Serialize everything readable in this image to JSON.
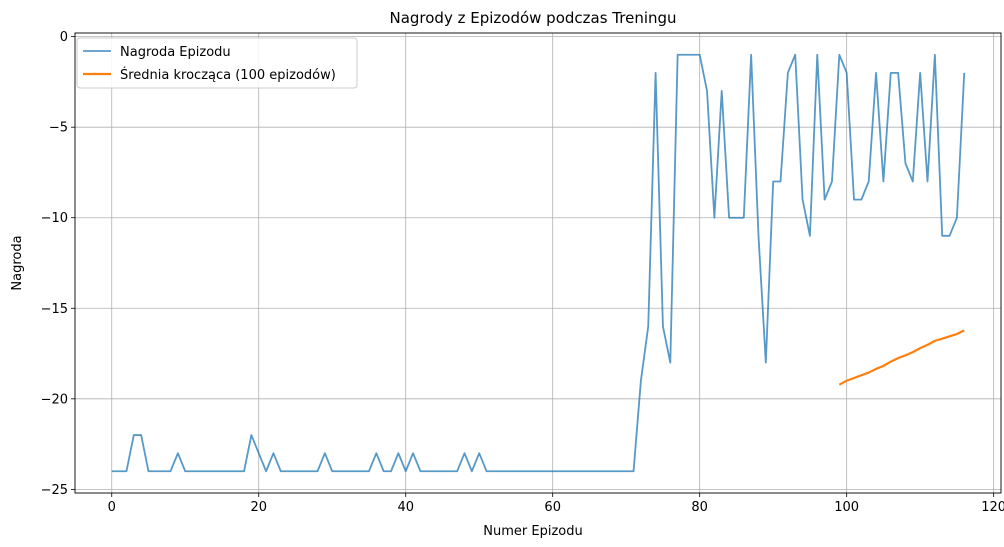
{
  "chart_data": {
    "type": "line",
    "title": "Nagrody z Epizodów podczas Treningu",
    "xlabel": "Numer Epizodu",
    "ylabel": "Nagroda",
    "xlim": [
      -5,
      121
    ],
    "ylim": [
      -25.2,
      0.2
    ],
    "xticks": [
      0,
      20,
      40,
      60,
      80,
      100,
      120
    ],
    "yticks": [
      0,
      -5,
      -10,
      -15,
      -20,
      -25
    ],
    "ytick_labels": [
      "0",
      "−5",
      "−10",
      "−15",
      "−20",
      "−25"
    ],
    "grid": true,
    "legend_position": "top-left",
    "series": [
      {
        "name": "Nagroda Epizodu",
        "color": "#1f77b4",
        "x": [
          0,
          1,
          2,
          3,
          4,
          5,
          6,
          7,
          8,
          9,
          10,
          11,
          12,
          13,
          14,
          15,
          16,
          17,
          18,
          19,
          20,
          21,
          22,
          23,
          24,
          25,
          26,
          27,
          28,
          29,
          30,
          31,
          32,
          33,
          34,
          35,
          36,
          37,
          38,
          39,
          40,
          41,
          42,
          43,
          44,
          45,
          46,
          47,
          48,
          49,
          50,
          51,
          52,
          53,
          54,
          55,
          56,
          57,
          58,
          59,
          60,
          61,
          62,
          63,
          64,
          65,
          66,
          67,
          68,
          69,
          70,
          71,
          72,
          73,
          74,
          75,
          76,
          77,
          78,
          79,
          80,
          81,
          82,
          83,
          84,
          85,
          86,
          87,
          88,
          89,
          90,
          91,
          92,
          93,
          94,
          95,
          96,
          97,
          98,
          99,
          100,
          101,
          102,
          103,
          104,
          105,
          106,
          107,
          108,
          109,
          110,
          111,
          112,
          113,
          114,
          115,
          116
        ],
        "values": [
          -24,
          -24,
          -24,
          -22,
          -22,
          -24,
          -24,
          -24,
          -24,
          -23,
          -24,
          -24,
          -24,
          -24,
          -24,
          -24,
          -24,
          -24,
          -24,
          -22,
          -23,
          -24,
          -23,
          -24,
          -24,
          -24,
          -24,
          -24,
          -24,
          -23,
          -24,
          -24,
          -24,
          -24,
          -24,
          -24,
          -23,
          -24,
          -24,
          -23,
          -24,
          -23,
          -24,
          -24,
          -24,
          -24,
          -24,
          -24,
          -23,
          -24,
          -23,
          -24,
          -24,
          -24,
          -24,
          -24,
          -24,
          -24,
          -24,
          -24,
          -24,
          -24,
          -24,
          -24,
          -24,
          -24,
          -24,
          -24,
          -24,
          -24,
          -24,
          -24,
          -19,
          -16,
          -2,
          -16,
          -18,
          -1,
          -1,
          -1,
          -1,
          -3,
          -10,
          -3,
          -10,
          -10,
          -10,
          -1,
          -11,
          -18,
          -8,
          -8,
          -2,
          -1,
          -9,
          -11,
          -1,
          -9,
          -8,
          -1,
          -2,
          -9,
          -9,
          -8,
          -2,
          -8,
          -2,
          -2,
          -7,
          -8,
          -2,
          -8,
          -1,
          -11,
          -11,
          -10,
          -2
        ]
      },
      {
        "name": "Średnia krocząca (100 epizodów)",
        "color": "#ff7f0e",
        "x": [
          99,
          100,
          101,
          102,
          103,
          104,
          105,
          106,
          107,
          108,
          109,
          110,
          111,
          112,
          113,
          114,
          115,
          116
        ],
        "values": [
          -19.22,
          -19.0,
          -18.85,
          -18.7,
          -18.55,
          -18.35,
          -18.18,
          -17.95,
          -17.75,
          -17.6,
          -17.42,
          -17.2,
          -17.02,
          -16.8,
          -16.68,
          -16.55,
          -16.42,
          -16.22
        ]
      }
    ]
  }
}
